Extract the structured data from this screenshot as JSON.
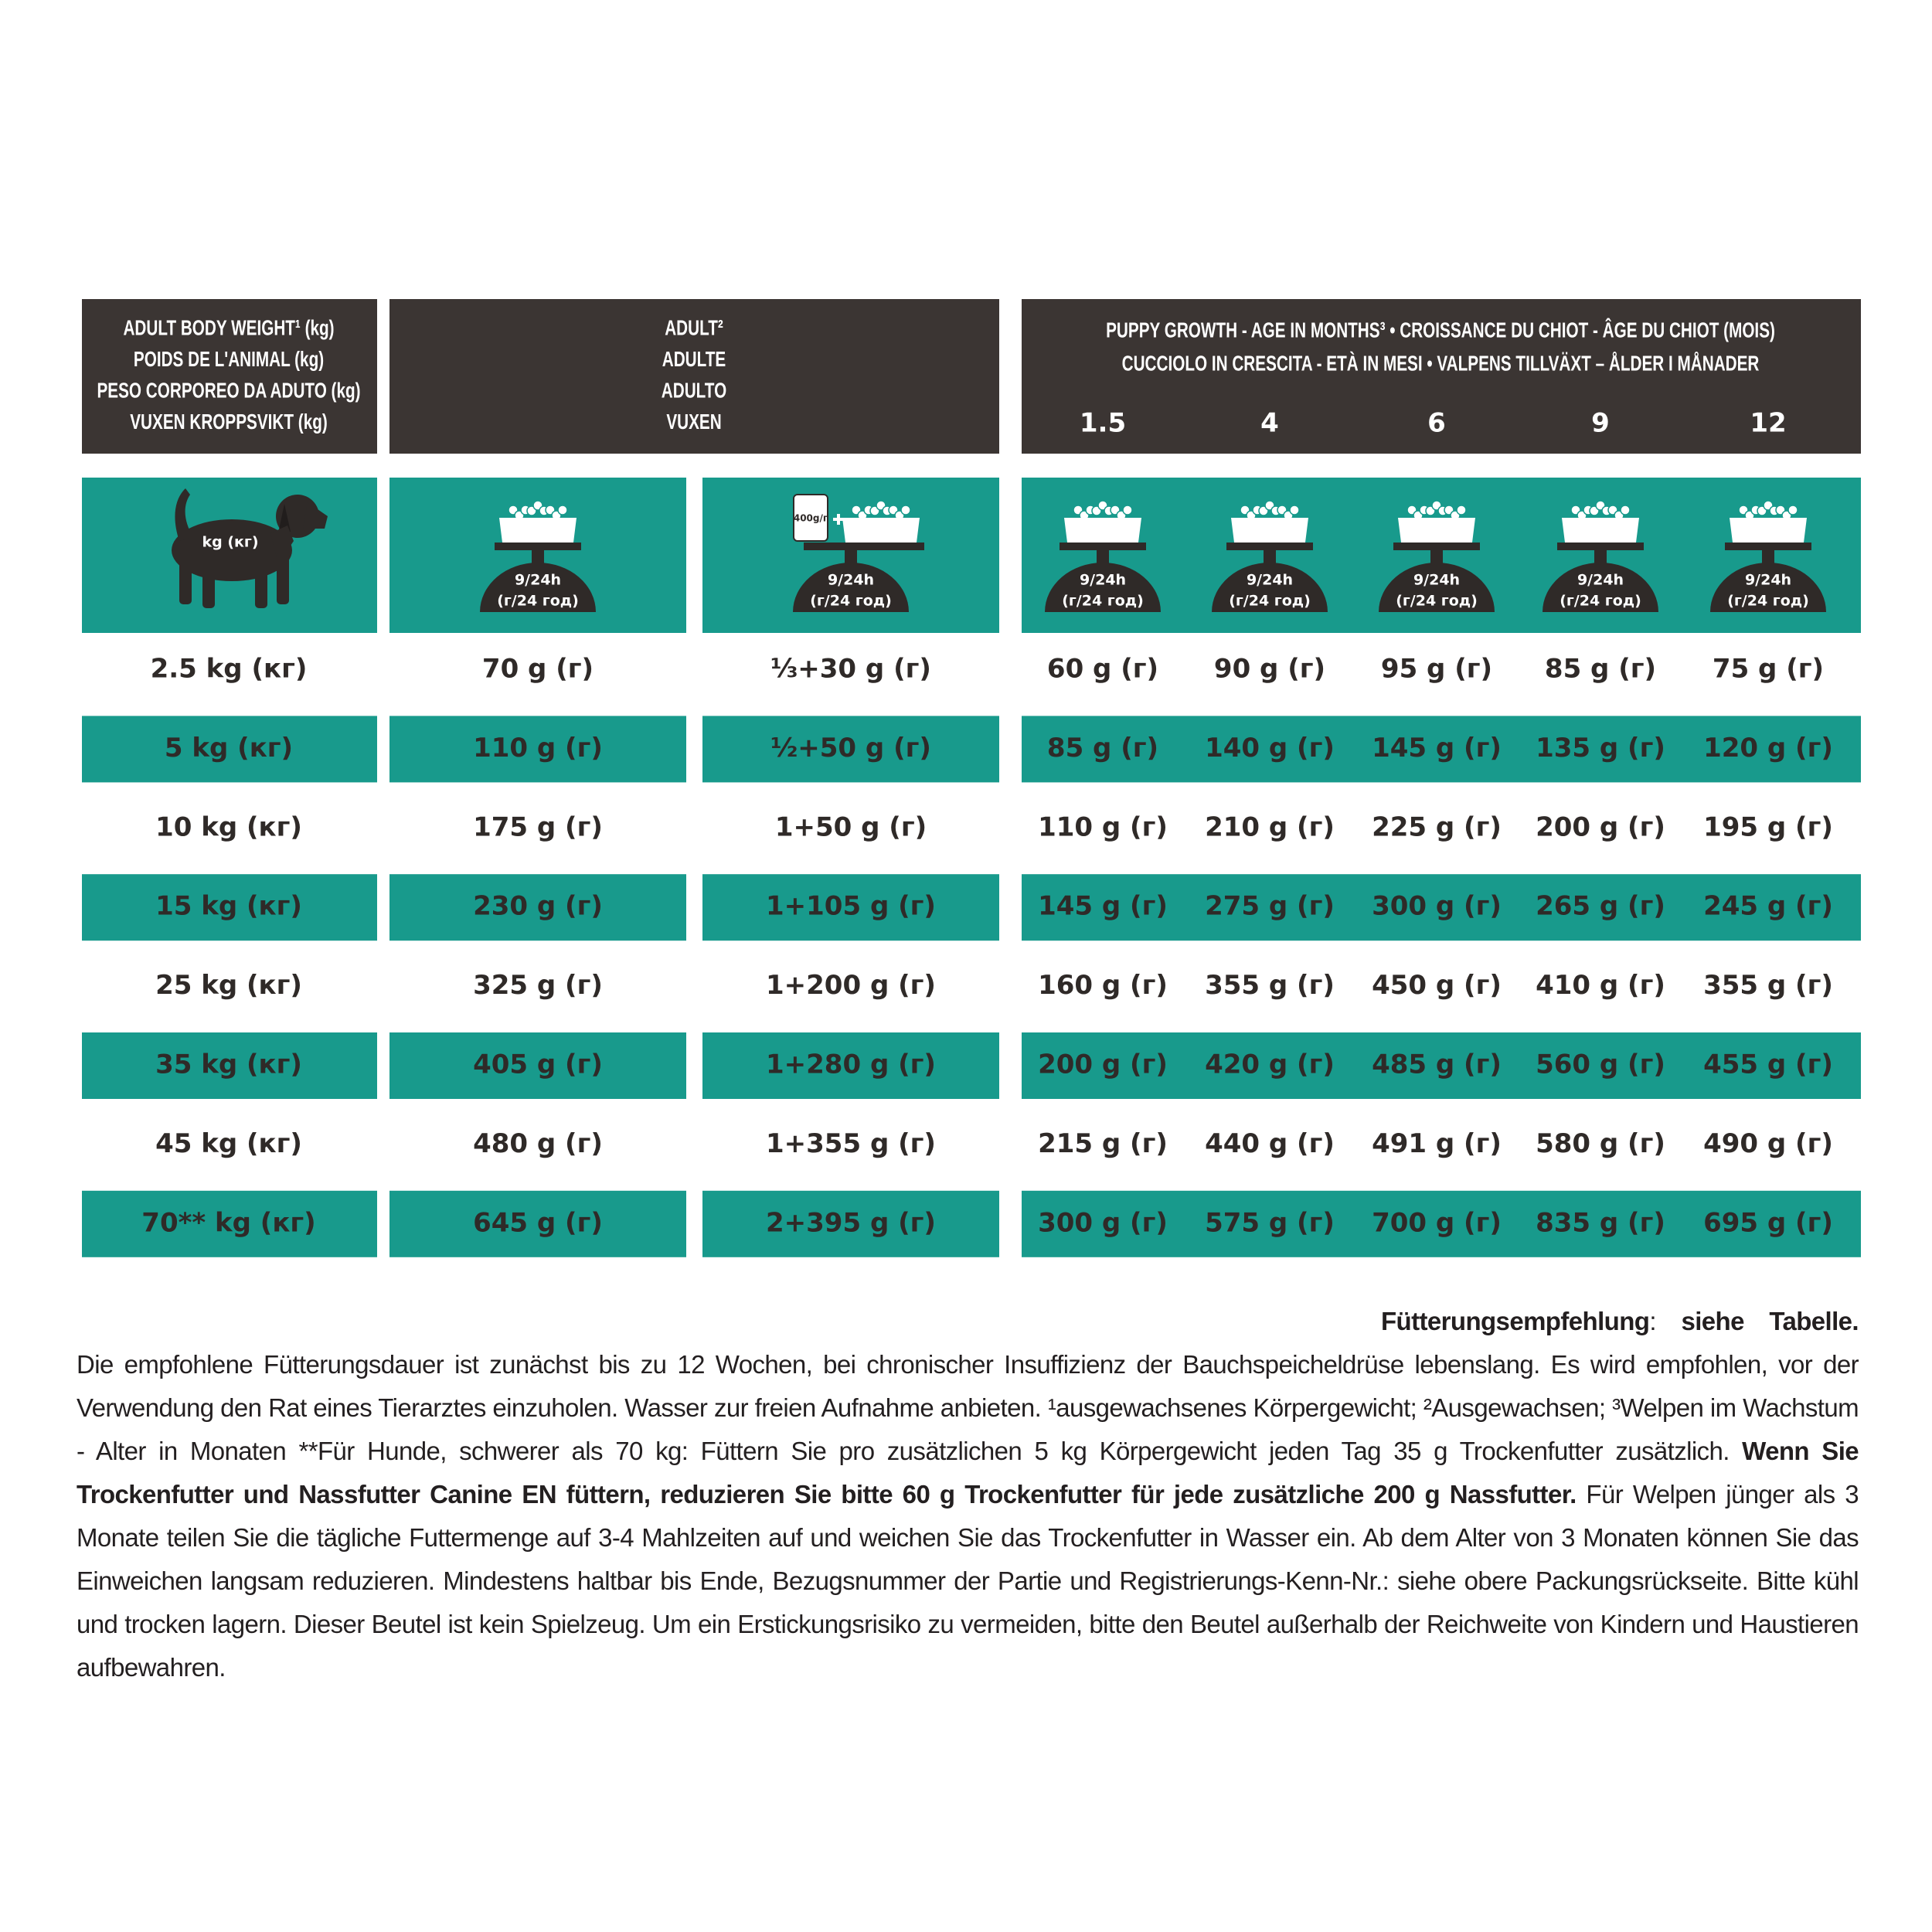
{
  "header": {
    "weight": [
      "ADULT BODY WEIGHT¹ (kg)",
      "POIDS DE L'ANIMAL (kg)",
      "PESO CORPOREO DA ADUTO (kg)",
      "VUXEN KROPPSVIKT (kg)"
    ],
    "adult": [
      "ADULT²",
      "ADULTE",
      "ADULTO",
      "VUXEN"
    ],
    "puppy": [
      "PUPPY GROWTH - AGE IN MONTHS³ • CROISSANCE DU CHIOT - ÂGE DU CHIOT (MOIS)",
      "CUCCIOLO IN CRESCITA - ETÀ IN MESI • VALPENS TILLVÄXT – ÅLDER I MÅNADER"
    ],
    "months": [
      1.5,
      4,
      6,
      9,
      12
    ]
  },
  "icons": {
    "weight_label": "kg (кг)",
    "rate_line1": "9/24h",
    "rate_line2": "(г/24 год)",
    "can_label": "400g/г"
  },
  "table": {
    "rows": [
      [
        "2.5 kg (кг)",
        "70 g (г)",
        "⅓+30 g (г)",
        "60 g (г)",
        "90 g (г)",
        "95 g (г)",
        "85 g (г)",
        "75 g (г)"
      ],
      [
        "5 kg (кг)",
        "110 g (г)",
        "½+50 g (г)",
        "85 g (г)",
        "140 g (г)",
        "145 g (г)",
        "135 g (г)",
        "120 g (г)"
      ],
      [
        "10 kg (кг)",
        "175 g (г)",
        "1+50 g (г)",
        "110 g (г)",
        "210 g (г)",
        "225 g (г)",
        "200 g (г)",
        "195 g (г)"
      ],
      [
        "15 kg (кг)",
        "230 g (г)",
        "1+105 g (г)",
        "145 g (г)",
        "275 g (г)",
        "300 g (г)",
        "265 g (г)",
        "245 g (г)"
      ],
      [
        "25 kg (кг)",
        "325 g (г)",
        "1+200 g (г)",
        "160 g (г)",
        "355 g (г)",
        "450 g (г)",
        "410 g (г)",
        "355 g (г)"
      ],
      [
        "35 kg (кг)",
        "405 g (г)",
        "1+280 g (г)",
        "200 g (г)",
        "420 g (г)",
        "485 g (г)",
        "560 g (г)",
        "455 g (г)"
      ],
      [
        "45 kg (кг)",
        "480 g (г)",
        "1+355 g (г)",
        "215 g (г)",
        "440 g (г)",
        "491 g (г)",
        "580 g (г)",
        "490 g (г)"
      ],
      [
        "70** kg (кг)",
        "645 g (г)",
        "2+395 g (г)",
        "300 g (г)",
        "575 g (г)",
        "700 g (г)",
        "835 g (г)",
        "695 g (г)"
      ]
    ]
  },
  "footnote": [
    {
      "text": "Fütterungsempfehlung",
      "bold": true
    },
    {
      "text": ": ",
      "bold": false
    },
    {
      "text": "siehe Tabelle.",
      "bold": true
    },
    {
      "text": " Die empfohlene Fütterungsdauer ist zunächst bis zu 12 Wochen, bei chronischer Insuffizienz der Bauchspeicheldrüse lebenslang. Es wird empfohlen, vor der Verwendung den Rat eines Tierarztes einzuholen. Wasser zur freien Aufnahme anbieten. ¹ausgewachsenes Körpergewicht; ²Ausgewachsen; ³Welpen im Wachstum - Alter in Monaten **Für Hunde, schwerer als 70 kg: Füttern Sie pro zusätzlichen 5 kg Körpergewicht jeden Tag 35 g Trockenfutter zusätzlich. ",
      "bold": false
    },
    {
      "text": "Wenn Sie Trockenfutter und Nassfutter Canine EN füttern, reduzieren Sie bitte 60 g Trockenfutter für jede zusätzliche 200 g Nassfutter.",
      "bold": true
    },
    {
      "text": " Für Welpen jünger als 3 Monate teilen Sie die tägliche Futtermenge auf 3-4 Mahlzeiten auf und weichen Sie das Trockenfutter in Wasser ein. Ab dem Alter von 3 Monaten können Sie das Einweichen langsam reduzieren. Mindestens haltbar bis Ende, Bezugsnummer der Partie und Registrierungs-Kenn-Nr.: siehe obere Packungsrückseite. Bitte kühl und trocken lagern. Dieser Beutel ist kein Spielzeug. Um ein Erstickungsrisiko zu vermeiden, bitte den Beutel außerhalb der Reichweite von Kindern und Haustieren aufbewahren.",
      "bold": false
    }
  ]
}
